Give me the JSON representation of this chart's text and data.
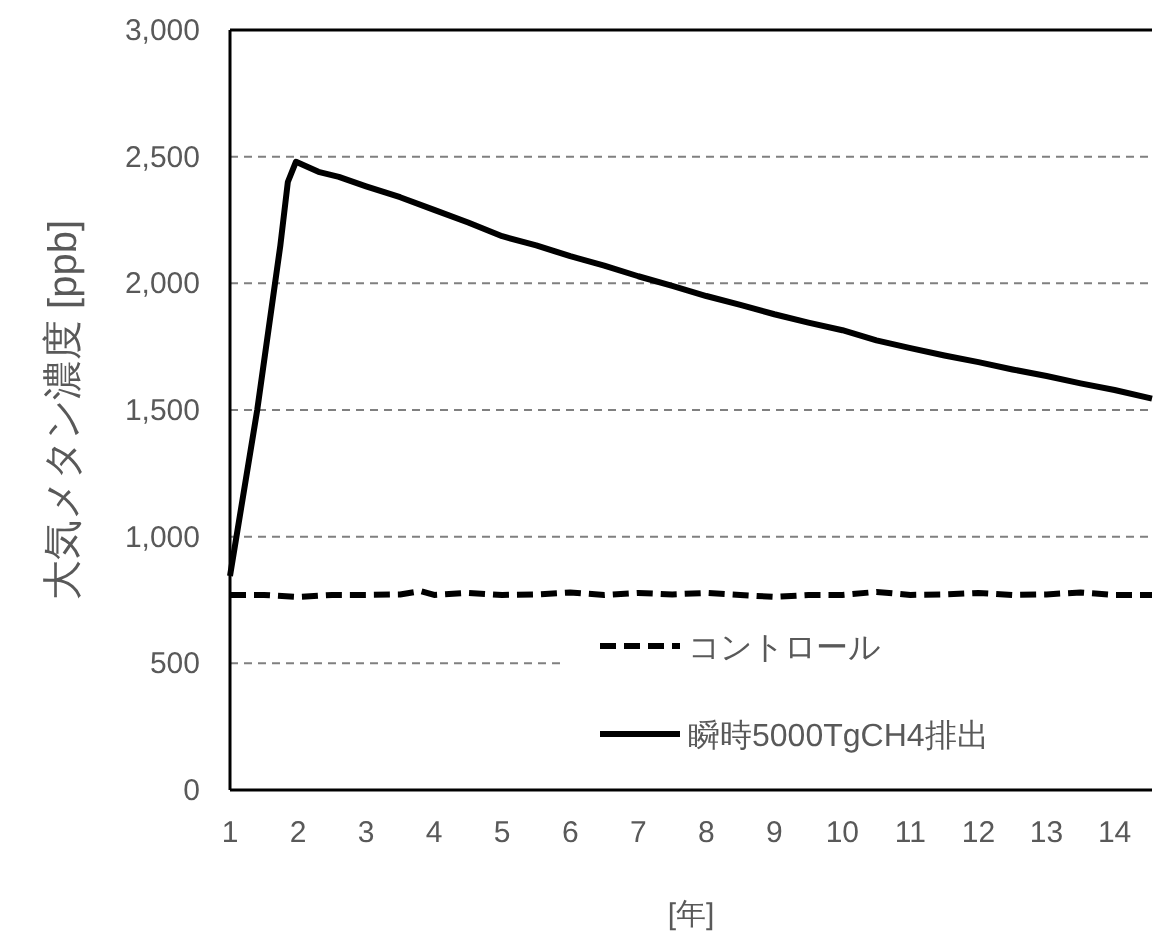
{
  "chart_data": {
    "type": "line",
    "ylabel": "大気メタン濃度 [ppb]",
    "xlabel": "[年]",
    "xlim": [
      1,
      14.55
    ],
    "xticks": [
      1,
      2,
      3,
      4,
      5,
      6,
      7,
      8,
      9,
      10,
      11,
      12,
      13,
      14
    ],
    "ylim": [
      0,
      3000
    ],
    "yticks": [
      {
        "value": 0,
        "label": "0"
      },
      {
        "value": 500,
        "label": "500"
      },
      {
        "value": 1000,
        "label": "1,000"
      },
      {
        "value": 1500,
        "label": "1,500"
      },
      {
        "value": 2000,
        "label": "2,000"
      },
      {
        "value": 2500,
        "label": "2,500"
      },
      {
        "value": 3000,
        "label": "3,000"
      }
    ],
    "grid": "y",
    "legend": "bottom right",
    "series": [
      {
        "name": "コントロール",
        "color": "#000000",
        "line_style": "dashed",
        "x": [
          1,
          1.5,
          2,
          2.5,
          3,
          3.5,
          3.8,
          4,
          4.5,
          5,
          5.5,
          6,
          6.5,
          7,
          7.5,
          8,
          8.5,
          9,
          9.5,
          10,
          10.5,
          11,
          11.5,
          12,
          12.5,
          13,
          13.5,
          14,
          14.55
        ],
        "values": [
          770,
          770,
          762,
          770,
          770,
          772,
          785,
          770,
          778,
          770,
          772,
          780,
          770,
          778,
          772,
          778,
          770,
          762,
          770,
          770,
          782,
          770,
          772,
          778,
          770,
          772,
          780,
          770,
          770
        ]
      },
      {
        "name": "瞬時5000TgCH4排出",
        "color": "#000000",
        "line_style": "solid",
        "x": [
          1,
          1.4,
          1.74,
          1.85,
          1.97,
          2.3,
          2.6,
          3,
          3.5,
          4,
          4.5,
          5,
          5.5,
          6,
          6.5,
          7,
          7.5,
          8,
          8.5,
          9,
          9.5,
          10,
          10.5,
          11,
          11.5,
          12,
          12.5,
          13,
          13.5,
          14,
          14.55
        ],
        "values": [
          845,
          1500,
          2150,
          2400,
          2480,
          2440,
          2420,
          2383,
          2340,
          2290,
          2240,
          2186,
          2150,
          2107,
          2070,
          2028,
          1990,
          1950,
          1915,
          1878,
          1845,
          1815,
          1775,
          1744,
          1715,
          1689,
          1660,
          1634,
          1605,
          1579,
          1545
        ]
      }
    ]
  }
}
